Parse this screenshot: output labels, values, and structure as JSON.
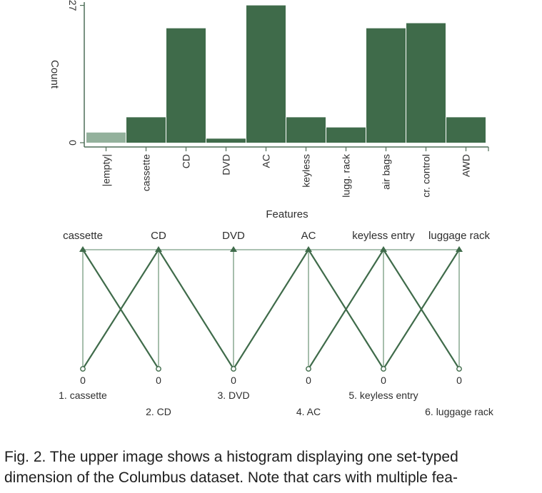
{
  "chart_data": [
    {
      "type": "bar",
      "categories": [
        "|empty|",
        "cassette",
        "CD",
        "DVD",
        "AC",
        "keyless",
        "lugg. rack",
        "air bags",
        "cr. control",
        "AWD"
      ],
      "values": [
        2,
        5,
        22.5,
        0.8,
        27,
        5,
        3,
        22.5,
        23.5,
        5
      ],
      "xlabel": "Features",
      "ylabel": "Count",
      "yticks": [
        0,
        27
      ],
      "ylim": [
        0,
        27.5
      ],
      "colors": {
        "bar": "#3f6b4a",
        "empty_bar": "#93b19c",
        "axis": "#4f6e58"
      }
    },
    {
      "type": "parallel-coordinates",
      "axes": [
        "cassette",
        "CD",
        "DVD",
        "AC",
        "keyless entry",
        "luggage rack"
      ],
      "axis_min_labels": [
        "0",
        "0",
        "0",
        "0",
        "0",
        "0"
      ],
      "bottom_labels": [
        "1. cassette",
        "2. CD",
        "3. DVD",
        "4. AC",
        "5. keyless entry",
        "6. luggage rack"
      ],
      "crossings": [
        {
          "from": 0,
          "to": 1,
          "top_to_bottom": true,
          "bottom_to_top": true,
          "top_to_top": true
        },
        {
          "from": 1,
          "to": 2,
          "top_to_bottom": true,
          "bottom_to_top": false,
          "top_to_top": true
        },
        {
          "from": 2,
          "to": 3,
          "top_to_bottom": false,
          "bottom_to_top": true,
          "top_to_top": true
        },
        {
          "from": 3,
          "to": 4,
          "top_to_bottom": true,
          "bottom_to_top": true,
          "top_to_top": true
        },
        {
          "from": 4,
          "to": 5,
          "top_to_bottom": true,
          "bottom_to_top": true,
          "top_to_top": true
        }
      ],
      "colors": {
        "line": "#3f6b4a",
        "light_line": "#8fae98"
      }
    }
  ],
  "caption": {
    "line1": "Fig. 2.  The upper image shows a histogram displaying one set-typed",
    "line2": "dimension of the Columbus dataset.  Note that cars with multiple fea-"
  }
}
